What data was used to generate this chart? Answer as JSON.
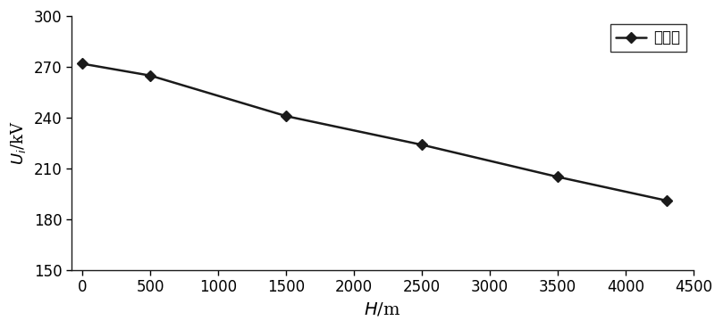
{
  "x": [
    0,
    500,
    1500,
    2500,
    3500,
    4300
  ],
  "y": [
    272,
    265,
    241,
    224,
    205,
    191
  ],
  "line_color": "#1a1a1a",
  "marker": "D",
  "marker_size": 6,
  "marker_facecolor": "#1a1a1a",
  "line_width": 1.8,
  "xlabel": "H/m",
  "ylabel_italic": "U",
  "ylabel_sub": "i",
  "ylabel_unit": "/kV",
  "xlim": [
    -80,
    4500
  ],
  "ylim": [
    150,
    300
  ],
  "yticks": [
    150,
    180,
    210,
    240,
    270,
    300
  ],
  "xticks": [
    0,
    500,
    1000,
    1500,
    2000,
    2500,
    3000,
    3500,
    4000,
    4500
  ],
  "legend_label": "屏蔽环",
  "legend_loc": "upper right",
  "figsize": [
    8.0,
    3.69
  ],
  "dpi": 100,
  "background_color": "#ffffff"
}
